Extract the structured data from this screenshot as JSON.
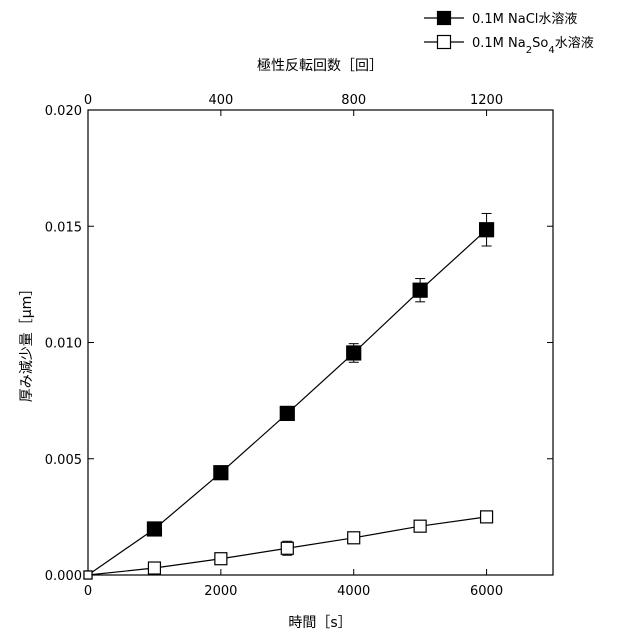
{
  "chart_data": {
    "type": "scatter",
    "xlabel": "時間［s］",
    "x2label": "極性反転回数［回］",
    "ylabel": "厚み減少量［μm］",
    "xlim": [
      0,
      7000
    ],
    "ylim": [
      0,
      0.02
    ],
    "x_ticks": [
      0,
      2000,
      4000,
      6000
    ],
    "x2_ticks": [
      0,
      400,
      800,
      1200
    ],
    "x2_scale": 5,
    "y_ticks": [
      "0.000",
      "0.005",
      "0.010",
      "0.015",
      "0.020"
    ],
    "grid": false,
    "legend_position": "top-right, outside plot",
    "series": [
      {
        "name": "0.1M NaCl水溶液",
        "marker": "filled-square",
        "color": "#000000",
        "x": [
          0,
          1000,
          2000,
          3000,
          4000,
          5000,
          6000
        ],
        "y": [
          0.0,
          0.00198,
          0.0044,
          0.00695,
          0.00955,
          0.01225,
          0.01485
        ],
        "yerr": [
          0,
          0.0,
          0.0,
          0.0003,
          0.0004,
          0.0005,
          0.0007
        ]
      },
      {
        "name": "0.1M Na2So4水溶液",
        "name_parts": [
          "0.1M Na",
          "2",
          "So",
          "4",
          "水溶液"
        ],
        "marker": "open-square",
        "color": "#000000",
        "x": [
          0,
          1000,
          2000,
          3000,
          4000,
          5000,
          6000
        ],
        "y": [
          0.0,
          0.0003,
          0.0007,
          0.00115,
          0.0016,
          0.0021,
          0.0025
        ],
        "yerr": [
          0,
          0.0001,
          0.0002,
          0.0003,
          0.0002,
          0.0002,
          0.0
        ]
      }
    ]
  }
}
